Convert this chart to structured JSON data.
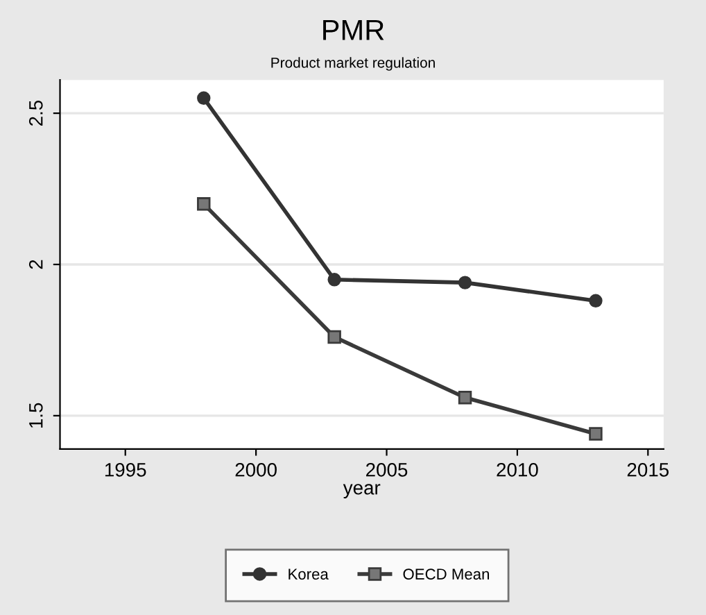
{
  "chart_data": {
    "type": "line",
    "title": "PMR",
    "subtitle": "Product market regulation",
    "xlabel": "year",
    "x": [
      1998,
      2003,
      2008,
      2013
    ],
    "series": [
      {
        "name": "Korea",
        "color": "#333333",
        "marker": "circle",
        "values": [
          2.55,
          1.95,
          1.94,
          1.88
        ]
      },
      {
        "name": "OECD Mean",
        "color": "#3a3a3a",
        "marker": "square",
        "values": [
          2.2,
          1.76,
          1.56,
          1.44
        ]
      }
    ],
    "xlim": [
      1992.5,
      2015.6
    ],
    "xticks": [
      1995,
      2000,
      2005,
      2010,
      2015
    ],
    "ylim": [
      1.39,
      2.61
    ],
    "yticks": [
      1.5,
      2,
      2.5
    ],
    "grid": "y",
    "legend": "bottom",
    "line_style": "solid"
  }
}
